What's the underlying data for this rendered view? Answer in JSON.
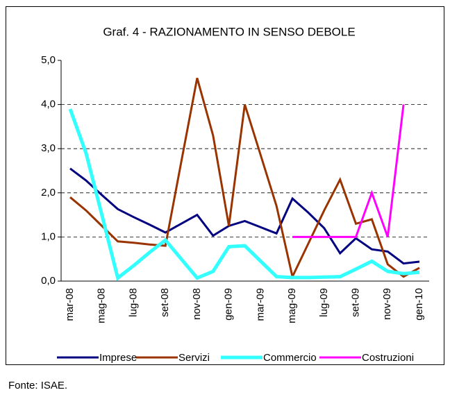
{
  "chart_data": {
    "type": "line",
    "title": "Graf. 4 - RAZIONAMENTO IN SENSO DEBOLE",
    "source": "Fonte: ISAE.",
    "categories": [
      "mar-08",
      null,
      "mag-08",
      null,
      "lug-08",
      null,
      "set-08",
      null,
      "nov-08",
      null,
      "gen-09",
      null,
      "mar-09",
      null,
      "mag-09",
      null,
      "lug-09",
      null,
      "set-09",
      null,
      "nov-09",
      null,
      "gen-10"
    ],
    "ylim": [
      0,
      5
    ],
    "yticks": [
      {
        "value": 0,
        "label": "0,0"
      },
      {
        "value": 1,
        "label": "1,0"
      },
      {
        "value": 2,
        "label": "2,0"
      },
      {
        "value": 3,
        "label": "3,0"
      },
      {
        "value": 4,
        "label": "4,0"
      },
      {
        "value": 5,
        "label": "5,0"
      }
    ],
    "grid": true,
    "legend": "bottom",
    "series": [
      {
        "name": "Imprese",
        "color": "#000080",
        "values": [
          2.55,
          2.28,
          1.95,
          1.63,
          1.45,
          1.28,
          1.1,
          1.3,
          1.5,
          1.03,
          1.25,
          1.36,
          1.22,
          1.08,
          1.87,
          1.55,
          1.2,
          0.63,
          0.97,
          0.72,
          0.67,
          0.4,
          0.44
        ]
      },
      {
        "name": "Servizi",
        "color": "#993300",
        "values": [
          1.9,
          1.6,
          1.25,
          0.9,
          0.87,
          0.83,
          0.8,
          2.7,
          4.6,
          3.3,
          1.25,
          4.0,
          2.85,
          1.7,
          0.1,
          0.85,
          1.6,
          2.3,
          1.3,
          1.4,
          0.38,
          0.1,
          0.3
        ]
      },
      {
        "name": "Commercio",
        "color": "#33ffff",
        "values": [
          3.9,
          2.9,
          1.5,
          0.07,
          0.35,
          0.65,
          0.93,
          0.5,
          0.07,
          0.22,
          0.78,
          0.8,
          0.45,
          0.1,
          0.08,
          0.08,
          0.09,
          0.1,
          0.27,
          0.45,
          0.22,
          0.17,
          0.2
        ]
      },
      {
        "name": "Costruzioni",
        "color": "#ff00ff",
        "values": [
          null,
          null,
          null,
          null,
          null,
          null,
          null,
          null,
          null,
          null,
          null,
          null,
          null,
          null,
          1.0,
          1.0,
          1.0,
          1.0,
          1.0,
          2.0,
          1.0,
          4.0,
          null
        ]
      }
    ]
  }
}
